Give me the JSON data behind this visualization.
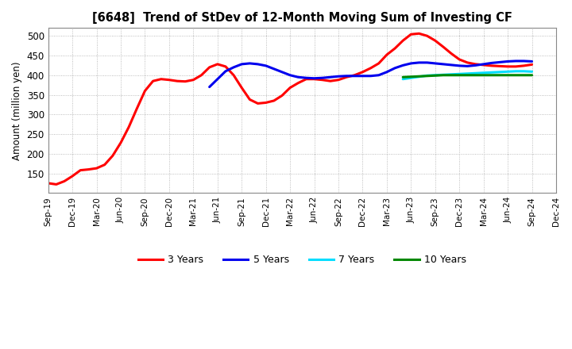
{
  "title": "[6648]  Trend of StDev of 12-Month Moving Sum of Investing CF",
  "ylabel": "Amount (million yen)",
  "ylim": [
    100,
    520
  ],
  "yticks": [
    150,
    200,
    250,
    300,
    350,
    400,
    450,
    500
  ],
  "background_color": "#ffffff",
  "grid_color": "#aaaaaa",
  "series": {
    "3 Years": {
      "color": "#ff0000",
      "x": [
        0,
        1,
        2,
        3,
        4,
        5,
        6,
        7,
        8,
        9,
        10,
        11,
        12,
        13,
        14,
        15,
        16,
        17,
        18,
        19,
        20,
        21,
        22,
        23,
        24,
        25,
        26,
        27,
        28,
        29,
        30,
        31,
        32,
        33,
        34,
        35,
        36,
        37,
        38,
        39,
        40,
        41,
        42,
        43,
        44,
        45,
        46,
        47,
        48,
        49,
        50,
        51,
        52,
        53,
        54,
        55,
        56,
        57,
        58,
        59,
        60
      ],
      "y": [
        125,
        122,
        130,
        143,
        158,
        160,
        163,
        172,
        195,
        228,
        268,
        315,
        360,
        385,
        390,
        388,
        385,
        384,
        388,
        400,
        420,
        428,
        422,
        400,
        368,
        338,
        328,
        330,
        335,
        348,
        368,
        380,
        390,
        390,
        388,
        385,
        388,
        395,
        400,
        408,
        418,
        430,
        452,
        468,
        488,
        504,
        506,
        500,
        488,
        472,
        455,
        440,
        432,
        428,
        426,
        424,
        423,
        422,
        422,
        424,
        427
      ]
    },
    "5 Years": {
      "color": "#0000ee",
      "x": [
        20,
        21,
        22,
        23,
        24,
        25,
        26,
        27,
        28,
        29,
        30,
        31,
        32,
        33,
        34,
        35,
        36,
        37,
        38,
        39,
        40,
        41,
        42,
        43,
        44,
        45,
        46,
        47,
        48,
        49,
        50,
        51,
        52,
        53,
        54,
        55,
        56,
        57,
        58,
        59,
        60
      ],
      "y": [
        370,
        390,
        410,
        420,
        428,
        430,
        428,
        424,
        416,
        408,
        400,
        395,
        393,
        392,
        393,
        395,
        397,
        398,
        398,
        398,
        398,
        400,
        408,
        418,
        425,
        430,
        432,
        432,
        430,
        428,
        426,
        424,
        423,
        425,
        428,
        431,
        433,
        435,
        436,
        436,
        435
      ]
    },
    "7 Years": {
      "color": "#00ddff",
      "x": [
        44,
        45,
        46,
        47,
        48,
        49,
        50,
        51,
        52,
        53,
        54,
        55,
        56,
        57,
        58,
        59,
        60
      ],
      "y": [
        390,
        393,
        396,
        399,
        400,
        401,
        402,
        403,
        404,
        405,
        406,
        407,
        408,
        409,
        410,
        410,
        409
      ]
    },
    "10 Years": {
      "color": "#008800",
      "x": [
        44,
        45,
        46,
        47,
        48,
        49,
        50,
        51,
        52,
        53,
        54,
        55,
        56,
        57,
        58,
        59,
        60
      ],
      "y": [
        395,
        396,
        397,
        398,
        399,
        400,
        400,
        400,
        400,
        400,
        400,
        400,
        400,
        400,
        400,
        400,
        400
      ]
    }
  },
  "xtick_labels": [
    "Sep-19",
    "Dec-19",
    "Mar-20",
    "Jun-20",
    "Sep-20",
    "Dec-20",
    "Mar-21",
    "Jun-21",
    "Sep-21",
    "Dec-21",
    "Mar-22",
    "Jun-22",
    "Sep-22",
    "Dec-22",
    "Mar-23",
    "Jun-23",
    "Sep-23",
    "Dec-23",
    "Mar-24",
    "Jun-24",
    "Sep-24",
    "Dec-24"
  ],
  "xtick_positions": [
    0,
    3,
    6,
    9,
    12,
    15,
    18,
    21,
    24,
    27,
    30,
    33,
    36,
    39,
    42,
    45,
    48,
    51,
    54,
    57,
    60,
    63
  ],
  "legend_entries": [
    "3 Years",
    "5 Years",
    "7 Years",
    "10 Years"
  ],
  "legend_colors": [
    "#ff0000",
    "#0000ee",
    "#00ddff",
    "#008800"
  ]
}
